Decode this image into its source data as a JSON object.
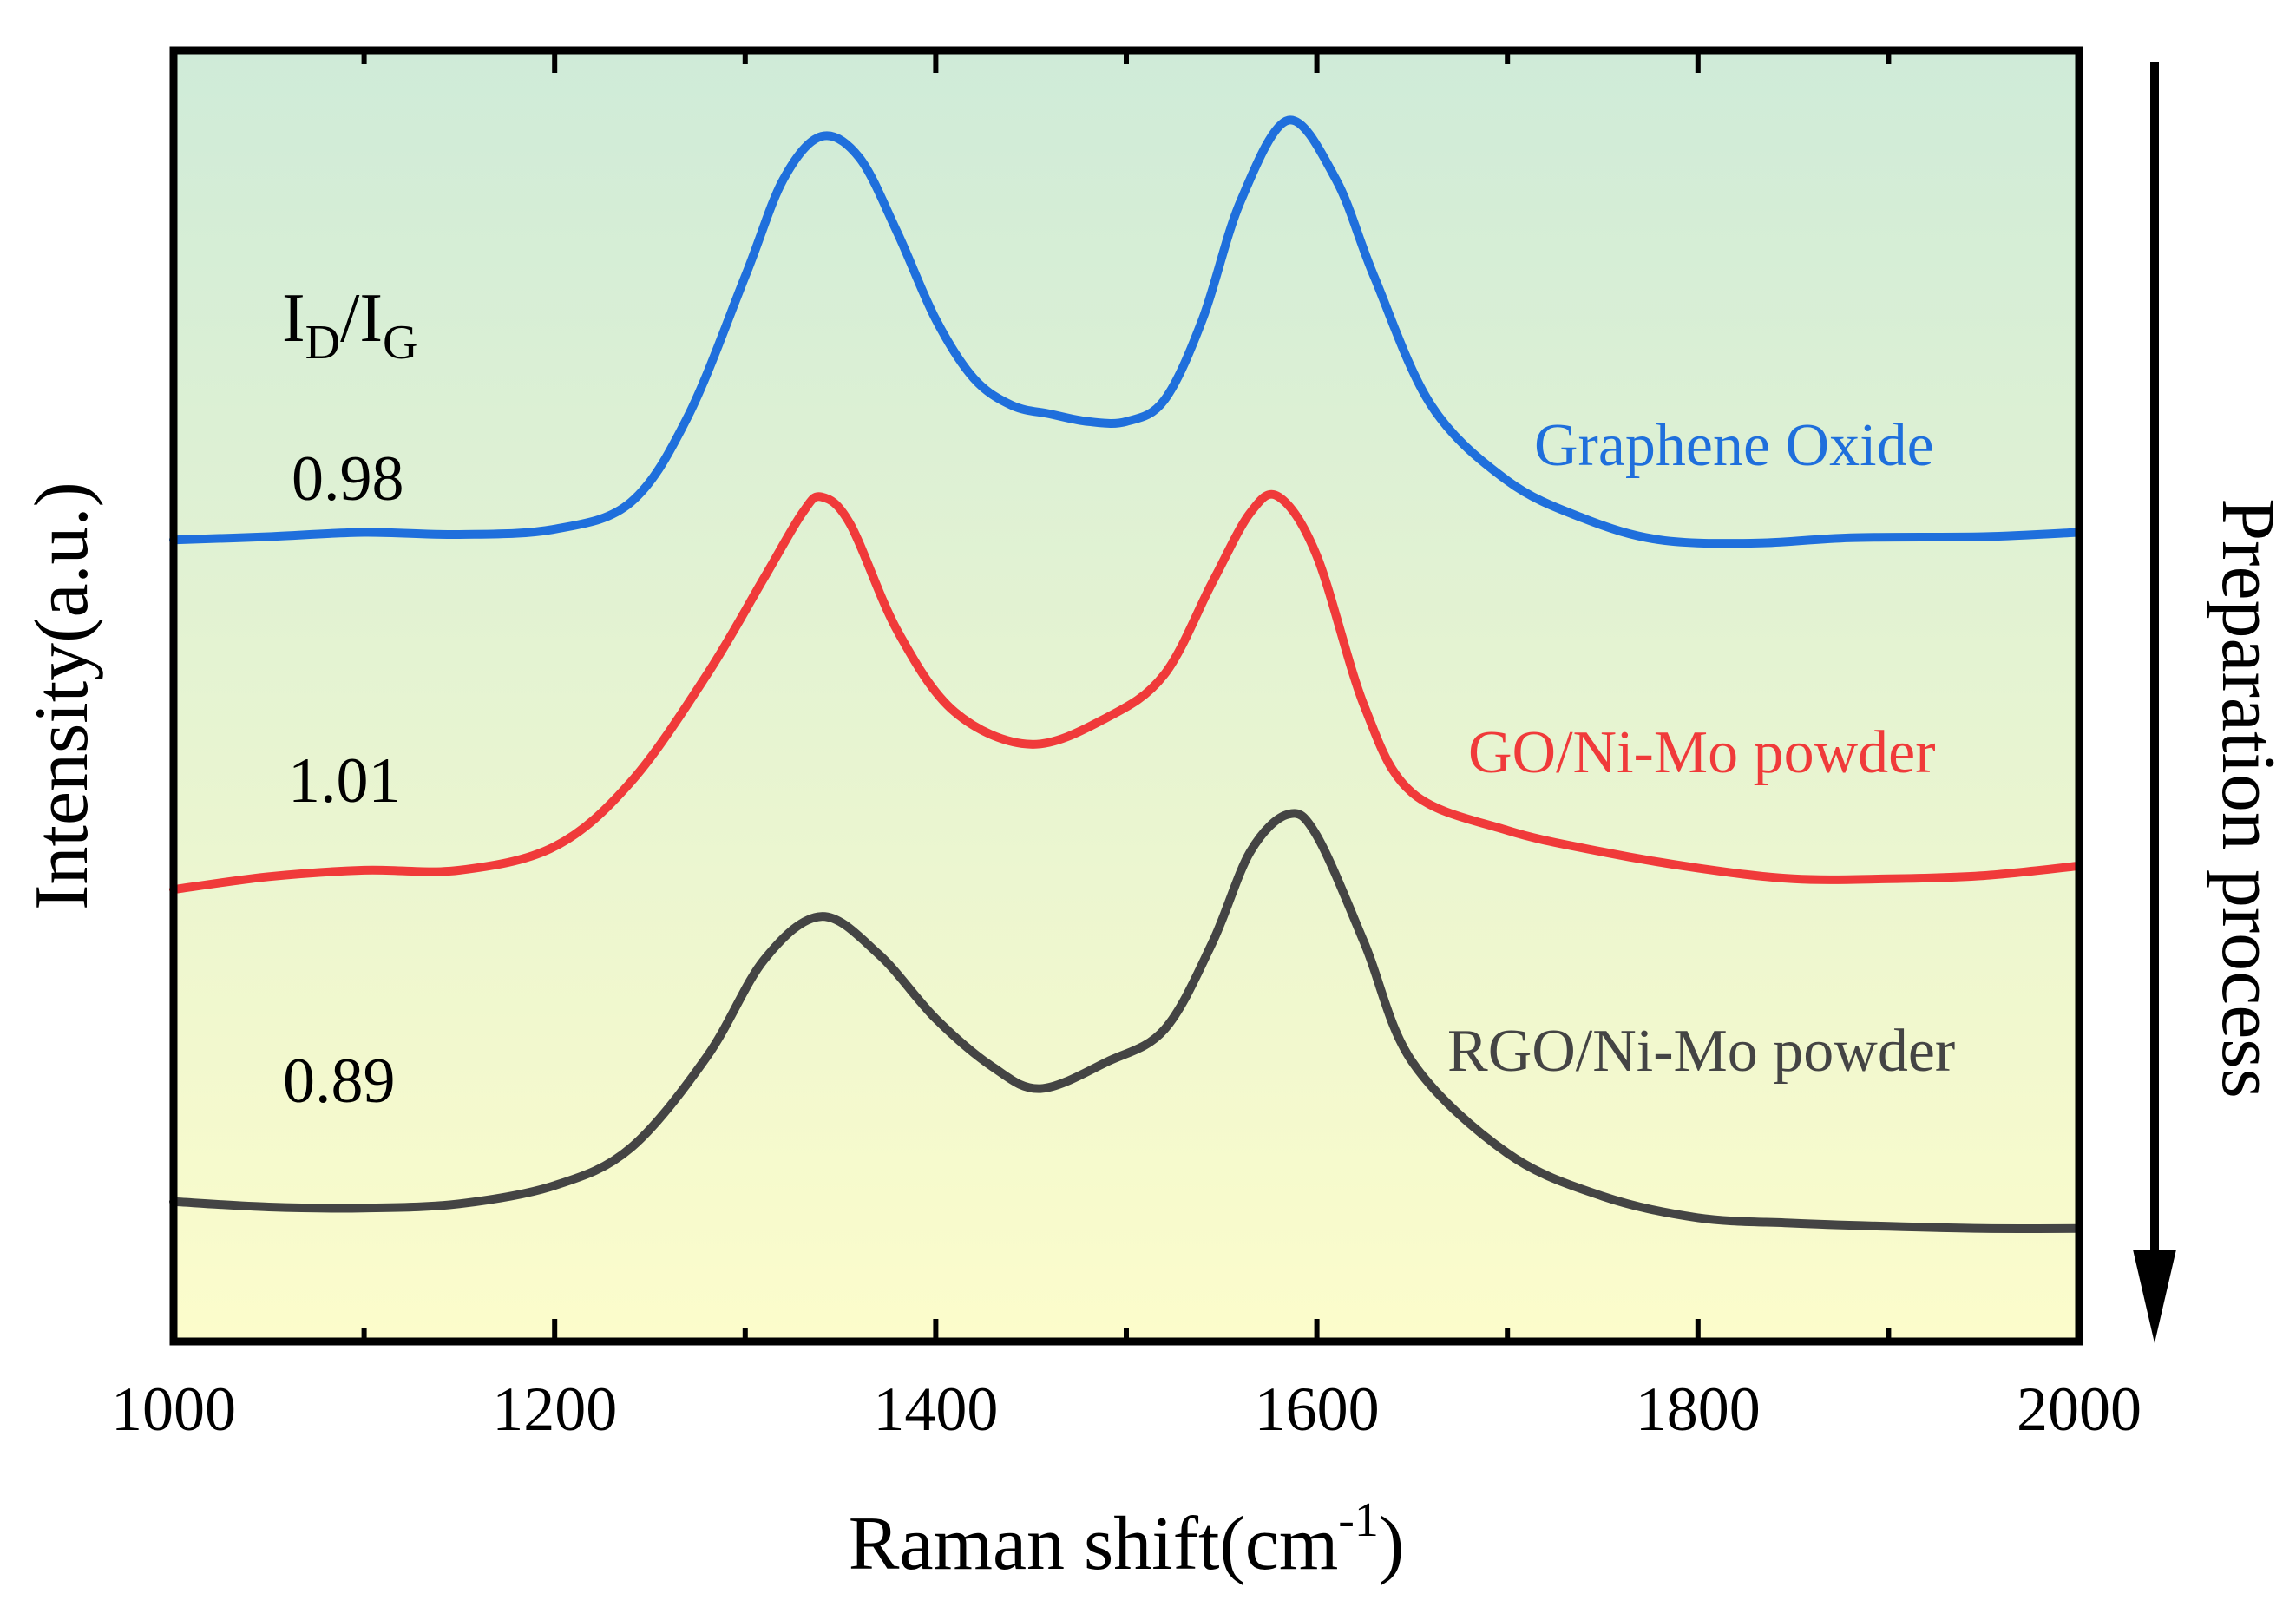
{
  "chart_data": {
    "type": "line",
    "title": "",
    "xlabel": "Raman shift(cm",
    "xlabel_sup": "-1",
    "xlabel_end": ")",
    "ylabel": "Intensity(a.u.)",
    "xlim": [
      1000,
      2000
    ],
    "ylim": [
      0,
      12
    ],
    "x_ticks": [
      1000,
      1200,
      1400,
      1600,
      1800,
      2000
    ],
    "x_tick_labels": [
      "1000",
      "1200",
      "1400",
      "1600",
      "1800",
      "2000"
    ],
    "grid": false,
    "background_gradient": {
      "top": "#cfebd8",
      "bottom": "#fcfccb"
    },
    "ratio_header": {
      "main1": "I",
      "sub1": "D",
      "slash": "/",
      "main2": "I",
      "sub2": "G"
    },
    "arrow_label": "Preparation process",
    "series": [
      {
        "name": "Graphene Oxide",
        "color": "#1f6fdc",
        "ratio": "0.98",
        "points": [
          [
            1000,
            7.45
          ],
          [
            1050,
            7.48
          ],
          [
            1100,
            7.52
          ],
          [
            1150,
            7.5
          ],
          [
            1200,
            7.55
          ],
          [
            1240,
            7.8
          ],
          [
            1270,
            8.6
          ],
          [
            1300,
            9.9
          ],
          [
            1320,
            10.8
          ],
          [
            1340,
            11.2
          ],
          [
            1360,
            11.0
          ],
          [
            1380,
            10.3
          ],
          [
            1400,
            9.5
          ],
          [
            1420,
            8.95
          ],
          [
            1440,
            8.7
          ],
          [
            1460,
            8.62
          ],
          [
            1480,
            8.55
          ],
          [
            1500,
            8.55
          ],
          [
            1520,
            8.75
          ],
          [
            1540,
            9.5
          ],
          [
            1560,
            10.6
          ],
          [
            1585,
            11.35
          ],
          [
            1610,
            10.8
          ],
          [
            1630,
            9.9
          ],
          [
            1660,
            8.7
          ],
          [
            1700,
            8.0
          ],
          [
            1740,
            7.65
          ],
          [
            1780,
            7.45
          ],
          [
            1830,
            7.42
          ],
          [
            1880,
            7.47
          ],
          [
            1950,
            7.48
          ],
          [
            2000,
            7.52
          ]
        ]
      },
      {
        "name": "GO/Ni-Mo powder",
        "color": "#f03a3a",
        "ratio": "1.01",
        "points": [
          [
            1000,
            4.2
          ],
          [
            1050,
            4.32
          ],
          [
            1100,
            4.38
          ],
          [
            1150,
            4.38
          ],
          [
            1200,
            4.6
          ],
          [
            1240,
            5.2
          ],
          [
            1280,
            6.2
          ],
          [
            1310,
            7.1
          ],
          [
            1330,
            7.7
          ],
          [
            1340,
            7.85
          ],
          [
            1355,
            7.6
          ],
          [
            1380,
            6.6
          ],
          [
            1410,
            5.85
          ],
          [
            1450,
            5.55
          ],
          [
            1490,
            5.8
          ],
          [
            1520,
            6.2
          ],
          [
            1545,
            7.05
          ],
          [
            1565,
            7.7
          ],
          [
            1580,
            7.85
          ],
          [
            1600,
            7.3
          ],
          [
            1625,
            5.9
          ],
          [
            1650,
            5.1
          ],
          [
            1700,
            4.75
          ],
          [
            1750,
            4.55
          ],
          [
            1800,
            4.4
          ],
          [
            1850,
            4.3
          ],
          [
            1900,
            4.3
          ],
          [
            1950,
            4.33
          ],
          [
            2000,
            4.42
          ]
        ]
      },
      {
        "name": "RGO/Ni-Mo powder",
        "color": "#444444",
        "ratio": "0.89",
        "points": [
          [
            1000,
            1.3
          ],
          [
            1050,
            1.25
          ],
          [
            1100,
            1.24
          ],
          [
            1150,
            1.28
          ],
          [
            1200,
            1.45
          ],
          [
            1240,
            1.8
          ],
          [
            1280,
            2.65
          ],
          [
            1310,
            3.55
          ],
          [
            1340,
            3.95
          ],
          [
            1370,
            3.6
          ],
          [
            1400,
            3.0
          ],
          [
            1430,
            2.55
          ],
          [
            1455,
            2.35
          ],
          [
            1490,
            2.6
          ],
          [
            1520,
            2.9
          ],
          [
            1545,
            3.7
          ],
          [
            1565,
            4.55
          ],
          [
            1585,
            4.9
          ],
          [
            1600,
            4.7
          ],
          [
            1625,
            3.7
          ],
          [
            1650,
            2.6
          ],
          [
            1700,
            1.75
          ],
          [
            1750,
            1.35
          ],
          [
            1800,
            1.15
          ],
          [
            1850,
            1.1
          ],
          [
            1900,
            1.07
          ],
          [
            1950,
            1.05
          ],
          [
            2000,
            1.05
          ]
        ]
      }
    ]
  }
}
